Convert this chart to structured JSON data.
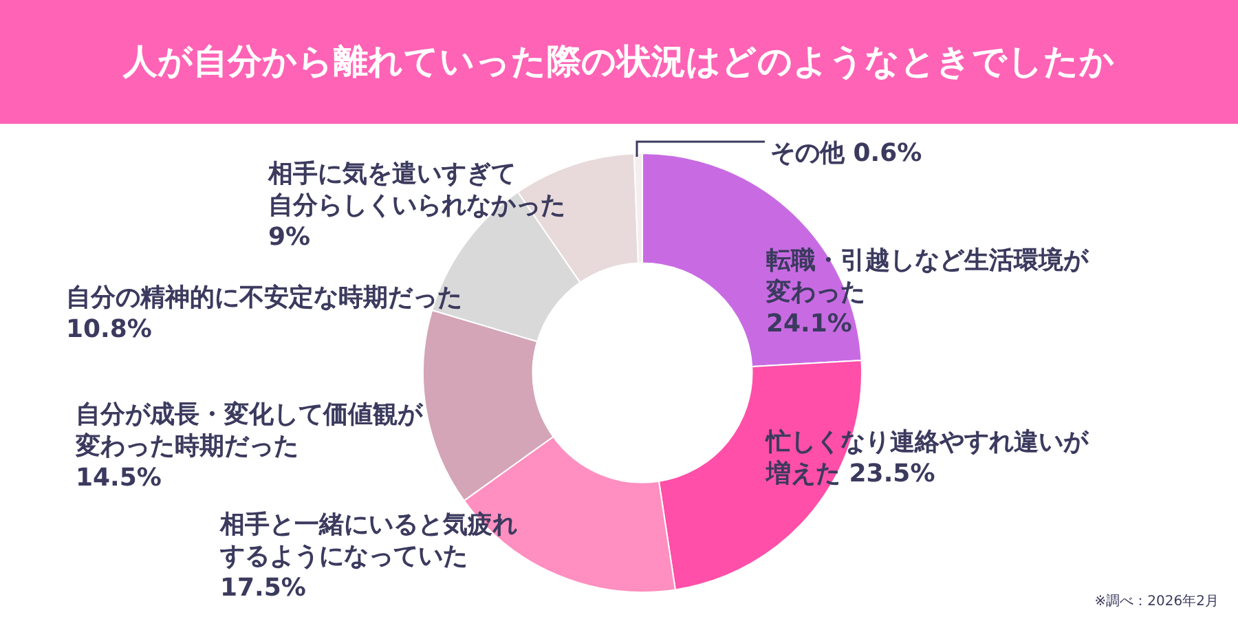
{
  "chart_data": {
    "type": "donut",
    "title": "人が自分から離れていった際の状況はどのようなときでしたか",
    "categories": [
      "転職・引越しなど生活環境が変わった",
      "忙しくなり連絡やすれ違いが増えた",
      "相手と一緒にいると気疲れするようになっていた",
      "自分が成長・変化して価値観が変わった時期だった",
      "自分の精神的に不安定な時期だった",
      "相手に気を遣いすぎて自分らしくいられなかった",
      "その他"
    ],
    "values": [
      24.1,
      23.5,
      17.5,
      14.5,
      10.8,
      9,
      0.6
    ],
    "colors": [
      "#c86be3",
      "#ff4fa8",
      "#ff8fc0",
      "#d3a5b6",
      "#d9d9d9",
      "#e8dada",
      "#f4eeee"
    ],
    "value_labels": [
      "24.1%",
      "23.5%",
      "17.5%",
      "14.5%",
      "10.8%",
      "9%",
      "0.6%"
    ],
    "annotations": [
      "※調べ：2026年2月"
    ]
  }
}
